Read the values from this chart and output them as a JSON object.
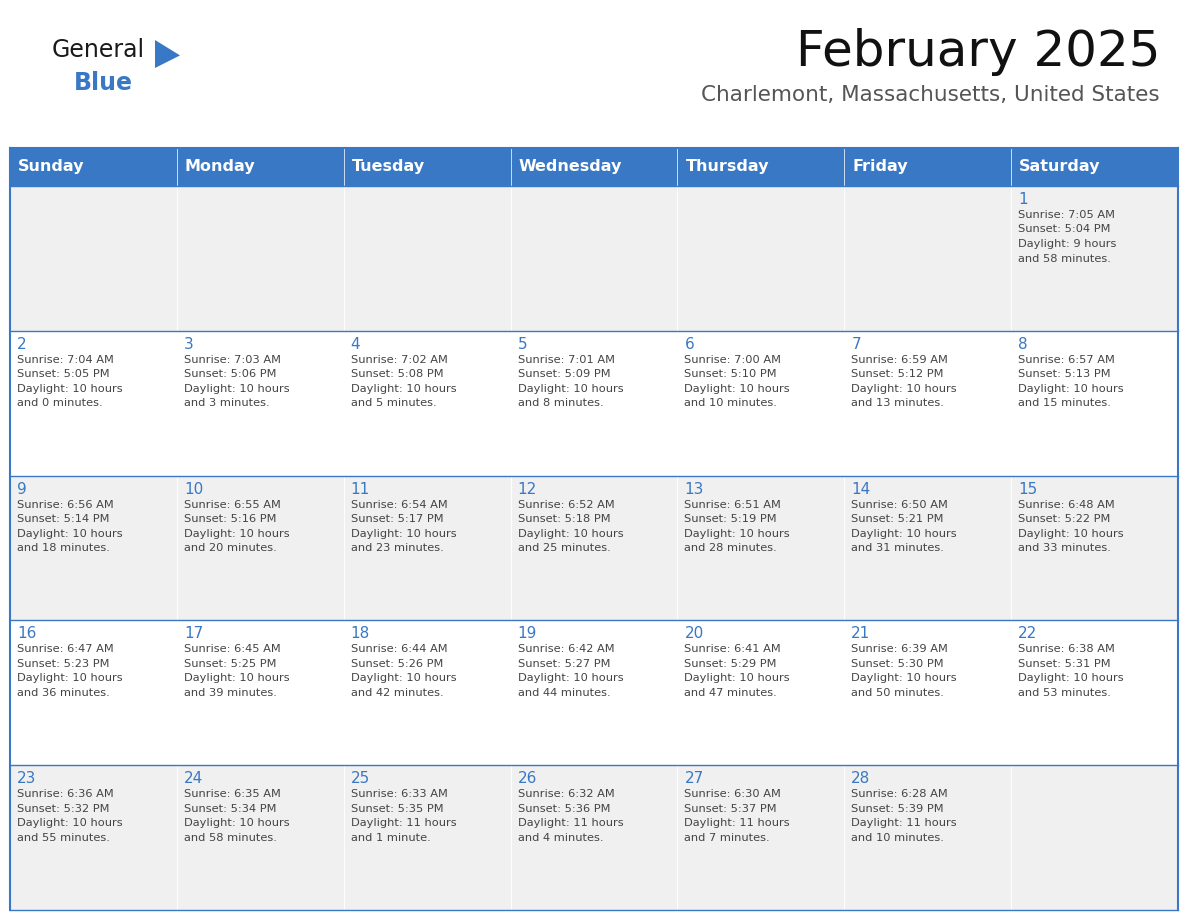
{
  "title": "February 2025",
  "subtitle": "Charlemont, Massachusetts, United States",
  "header_bg": "#3878C5",
  "header_text_color": "#FFFFFF",
  "weekdays": [
    "Sunday",
    "Monday",
    "Tuesday",
    "Wednesday",
    "Thursday",
    "Friday",
    "Saturday"
  ],
  "row0_bg": "#F0F0F0",
  "row1_bg": "#FFFFFF",
  "row2_bg": "#F0F0F0",
  "row3_bg": "#FFFFFF",
  "row4_bg": "#F0F0F0",
  "cell_border_color": "#3878C5",
  "day_number_color": "#3878C5",
  "info_text_color": "#444444",
  "logo_general_color": "#1a1a1a",
  "logo_blue_color": "#3878C5",
  "days": [
    {
      "day": 1,
      "col": 6,
      "row": 0,
      "sunrise": "7:05 AM",
      "sunset": "5:04 PM",
      "daylight": "9 hours and 58 minutes."
    },
    {
      "day": 2,
      "col": 0,
      "row": 1,
      "sunrise": "7:04 AM",
      "sunset": "5:05 PM",
      "daylight": "10 hours and 0 minutes."
    },
    {
      "day": 3,
      "col": 1,
      "row": 1,
      "sunrise": "7:03 AM",
      "sunset": "5:06 PM",
      "daylight": "10 hours and 3 minutes."
    },
    {
      "day": 4,
      "col": 2,
      "row": 1,
      "sunrise": "7:02 AM",
      "sunset": "5:08 PM",
      "daylight": "10 hours and 5 minutes."
    },
    {
      "day": 5,
      "col": 3,
      "row": 1,
      "sunrise": "7:01 AM",
      "sunset": "5:09 PM",
      "daylight": "10 hours and 8 minutes."
    },
    {
      "day": 6,
      "col": 4,
      "row": 1,
      "sunrise": "7:00 AM",
      "sunset": "5:10 PM",
      "daylight": "10 hours and 10 minutes."
    },
    {
      "day": 7,
      "col": 5,
      "row": 1,
      "sunrise": "6:59 AM",
      "sunset": "5:12 PM",
      "daylight": "10 hours and 13 minutes."
    },
    {
      "day": 8,
      "col": 6,
      "row": 1,
      "sunrise": "6:57 AM",
      "sunset": "5:13 PM",
      "daylight": "10 hours and 15 minutes."
    },
    {
      "day": 9,
      "col": 0,
      "row": 2,
      "sunrise": "6:56 AM",
      "sunset": "5:14 PM",
      "daylight": "10 hours and 18 minutes."
    },
    {
      "day": 10,
      "col": 1,
      "row": 2,
      "sunrise": "6:55 AM",
      "sunset": "5:16 PM",
      "daylight": "10 hours and 20 minutes."
    },
    {
      "day": 11,
      "col": 2,
      "row": 2,
      "sunrise": "6:54 AM",
      "sunset": "5:17 PM",
      "daylight": "10 hours and 23 minutes."
    },
    {
      "day": 12,
      "col": 3,
      "row": 2,
      "sunrise": "6:52 AM",
      "sunset": "5:18 PM",
      "daylight": "10 hours and 25 minutes."
    },
    {
      "day": 13,
      "col": 4,
      "row": 2,
      "sunrise": "6:51 AM",
      "sunset": "5:19 PM",
      "daylight": "10 hours and 28 minutes."
    },
    {
      "day": 14,
      "col": 5,
      "row": 2,
      "sunrise": "6:50 AM",
      "sunset": "5:21 PM",
      "daylight": "10 hours and 31 minutes."
    },
    {
      "day": 15,
      "col": 6,
      "row": 2,
      "sunrise": "6:48 AM",
      "sunset": "5:22 PM",
      "daylight": "10 hours and 33 minutes."
    },
    {
      "day": 16,
      "col": 0,
      "row": 3,
      "sunrise": "6:47 AM",
      "sunset": "5:23 PM",
      "daylight": "10 hours and 36 minutes."
    },
    {
      "day": 17,
      "col": 1,
      "row": 3,
      "sunrise": "6:45 AM",
      "sunset": "5:25 PM",
      "daylight": "10 hours and 39 minutes."
    },
    {
      "day": 18,
      "col": 2,
      "row": 3,
      "sunrise": "6:44 AM",
      "sunset": "5:26 PM",
      "daylight": "10 hours and 42 minutes."
    },
    {
      "day": 19,
      "col": 3,
      "row": 3,
      "sunrise": "6:42 AM",
      "sunset": "5:27 PM",
      "daylight": "10 hours and 44 minutes."
    },
    {
      "day": 20,
      "col": 4,
      "row": 3,
      "sunrise": "6:41 AM",
      "sunset": "5:29 PM",
      "daylight": "10 hours and 47 minutes."
    },
    {
      "day": 21,
      "col": 5,
      "row": 3,
      "sunrise": "6:39 AM",
      "sunset": "5:30 PM",
      "daylight": "10 hours and 50 minutes."
    },
    {
      "day": 22,
      "col": 6,
      "row": 3,
      "sunrise": "6:38 AM",
      "sunset": "5:31 PM",
      "daylight": "10 hours and 53 minutes."
    },
    {
      "day": 23,
      "col": 0,
      "row": 4,
      "sunrise": "6:36 AM",
      "sunset": "5:32 PM",
      "daylight": "10 hours and 55 minutes."
    },
    {
      "day": 24,
      "col": 1,
      "row": 4,
      "sunrise": "6:35 AM",
      "sunset": "5:34 PM",
      "daylight": "10 hours and 58 minutes."
    },
    {
      "day": 25,
      "col": 2,
      "row": 4,
      "sunrise": "6:33 AM",
      "sunset": "5:35 PM",
      "daylight": "11 hours and 1 minute."
    },
    {
      "day": 26,
      "col": 3,
      "row": 4,
      "sunrise": "6:32 AM",
      "sunset": "5:36 PM",
      "daylight": "11 hours and 4 minutes."
    },
    {
      "day": 27,
      "col": 4,
      "row": 4,
      "sunrise": "6:30 AM",
      "sunset": "5:37 PM",
      "daylight": "11 hours and 7 minutes."
    },
    {
      "day": 28,
      "col": 5,
      "row": 4,
      "sunrise": "6:28 AM",
      "sunset": "5:39 PM",
      "daylight": "11 hours and 10 minutes."
    }
  ]
}
